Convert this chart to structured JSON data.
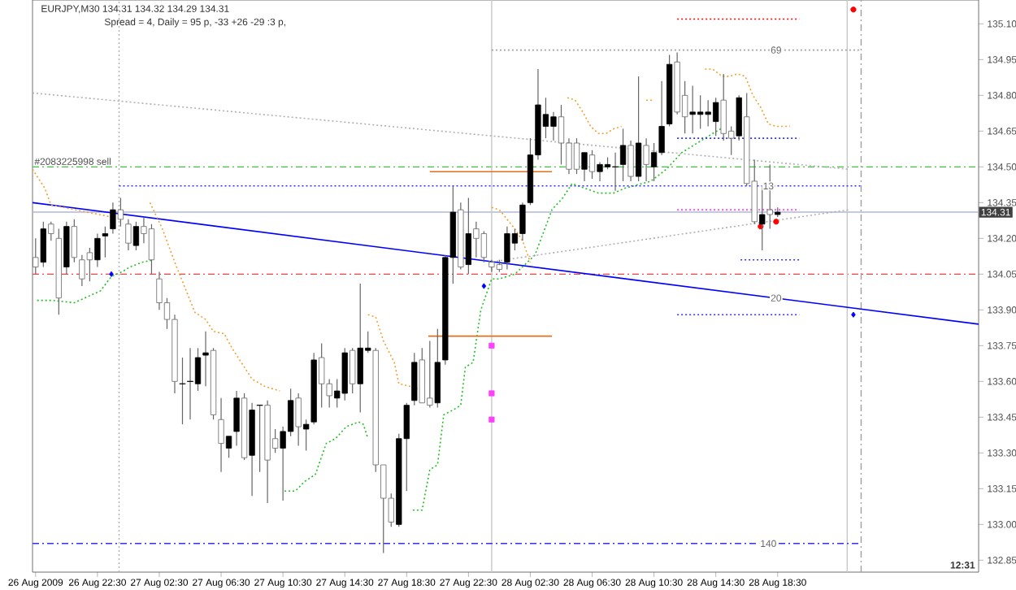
{
  "chart_data": {
    "type": "candlestick",
    "title": "EURJPY,M30  134.31 134.32 134.29 134.31",
    "subtitle": "Spread = 4,   Daily  = 95 p,   -33 +26 -29 :3 p,",
    "x": [
      "2009-08-26T18:30",
      "2009-08-26T19:00",
      "2009-08-26T19:30",
      "2009-08-26T20:00",
      "2009-08-26T20:30",
      "2009-08-26T21:00",
      "2009-08-26T21:30",
      "2009-08-26T22:00",
      "2009-08-26T22:30",
      "2009-08-26T23:00",
      "2009-08-26T23:30",
      "2009-08-27T00:00",
      "2009-08-27T00:30",
      "2009-08-27T01:00",
      "2009-08-27T01:30",
      "2009-08-27T02:00",
      "2009-08-27T02:30",
      "2009-08-27T03:00",
      "2009-08-27T03:30",
      "2009-08-27T04:00",
      "2009-08-27T04:30",
      "2009-08-27T05:00",
      "2009-08-27T05:30",
      "2009-08-27T06:00",
      "2009-08-27T06:30",
      "2009-08-27T07:00",
      "2009-08-27T07:30",
      "2009-08-27T08:00",
      "2009-08-27T08:30",
      "2009-08-27T09:00",
      "2009-08-27T09:30",
      "2009-08-27T10:00",
      "2009-08-27T10:30",
      "2009-08-27T11:00",
      "2009-08-27T11:30",
      "2009-08-27T12:00",
      "2009-08-27T12:30",
      "2009-08-27T13:00",
      "2009-08-27T13:30",
      "2009-08-27T14:00",
      "2009-08-27T14:30",
      "2009-08-27T15:00",
      "2009-08-27T15:30",
      "2009-08-27T16:00",
      "2009-08-27T16:30",
      "2009-08-27T17:00",
      "2009-08-27T17:30",
      "2009-08-27T18:00",
      "2009-08-27T18:30",
      "2009-08-27T19:00",
      "2009-08-27T19:30",
      "2009-08-27T20:00",
      "2009-08-27T20:30",
      "2009-08-27T21:00",
      "2009-08-27T21:30",
      "2009-08-27T22:00",
      "2009-08-27T22:30",
      "2009-08-27T23:00",
      "2009-08-27T23:30",
      "2009-08-28T00:00",
      "2009-08-28T00:30",
      "2009-08-28T01:00",
      "2009-08-28T01:30",
      "2009-08-28T02:00",
      "2009-08-28T02:30",
      "2009-08-28T03:00",
      "2009-08-28T03:30",
      "2009-08-28T04:00",
      "2009-08-28T04:30",
      "2009-08-28T05:00",
      "2009-08-28T05:30",
      "2009-08-28T06:00",
      "2009-08-28T06:30",
      "2009-08-28T07:00",
      "2009-08-28T07:30",
      "2009-08-28T08:00",
      "2009-08-28T08:30",
      "2009-08-28T09:00",
      "2009-08-28T09:30",
      "2009-08-28T10:00",
      "2009-08-28T10:30",
      "2009-08-28T11:00",
      "2009-08-28T11:30",
      "2009-08-28T12:00",
      "2009-08-28T12:30",
      "2009-08-28T13:00",
      "2009-08-28T13:30",
      "2009-08-28T14:00",
      "2009-08-28T14:30",
      "2009-08-28T15:00",
      "2009-08-28T15:30",
      "2009-08-28T16:00",
      "2009-08-28T16:30",
      "2009-08-28T17:00",
      "2009-08-28T17:30",
      "2009-08-28T18:00",
      "2009-08-28T18:30"
    ],
    "ohlc": [
      [
        134.12,
        134.2,
        134.05,
        134.08
      ],
      [
        134.1,
        134.27,
        134.08,
        134.24
      ],
      [
        134.26,
        134.27,
        134.19,
        134.22
      ],
      [
        134.2,
        134.24,
        133.88,
        133.95
      ],
      [
        134.08,
        134.27,
        134.05,
        134.25
      ],
      [
        134.25,
        134.28,
        134.1,
        134.12
      ],
      [
        134.11,
        134.13,
        134.0,
        134.03
      ],
      [
        134.14,
        134.16,
        134.02,
        134.11
      ],
      [
        134.11,
        134.22,
        134.08,
        134.2
      ],
      [
        134.21,
        134.25,
        134.12,
        134.22
      ],
      [
        134.24,
        134.35,
        134.22,
        134.32
      ],
      [
        134.32,
        134.37,
        134.25,
        134.28
      ],
      [
        134.26,
        134.28,
        134.15,
        134.18
      ],
      [
        134.17,
        134.27,
        134.15,
        134.25
      ],
      [
        134.25,
        134.29,
        134.18,
        134.22
      ],
      [
        134.24,
        134.26,
        134.05,
        134.11
      ],
      [
        134.03,
        134.06,
        133.9,
        133.93
      ],
      [
        133.93,
        133.95,
        133.82,
        133.86
      ],
      [
        133.86,
        133.88,
        133.55,
        133.6
      ],
      [
        133.59,
        133.7,
        133.42,
        133.59
      ],
      [
        133.6,
        133.74,
        133.44,
        133.6
      ],
      [
        133.59,
        133.74,
        133.56,
        133.7
      ],
      [
        133.71,
        133.81,
        133.58,
        133.72
      ],
      [
        133.73,
        133.74,
        133.44,
        133.46
      ],
      [
        133.44,
        133.53,
        133.22,
        133.34
      ],
      [
        133.32,
        133.37,
        133.28,
        133.37
      ],
      [
        133.39,
        133.56,
        133.33,
        133.53
      ],
      [
        133.53,
        133.55,
        133.27,
        133.28
      ],
      [
        133.29,
        133.51,
        133.12,
        133.48
      ],
      [
        133.5,
        133.5,
        133.22,
        133.5
      ],
      [
        133.5,
        133.52,
        133.09,
        133.27
      ],
      [
        133.36,
        133.4,
        133.3,
        133.32
      ],
      [
        133.32,
        133.41,
        133.1,
        133.39
      ],
      [
        133.39,
        133.57,
        133.37,
        133.52
      ],
      [
        133.53,
        133.55,
        133.33,
        133.41
      ],
      [
        133.4,
        133.44,
        133.31,
        133.42
      ],
      [
        133.43,
        133.72,
        133.42,
        133.69
      ],
      [
        133.7,
        133.76,
        133.49,
        133.59
      ],
      [
        133.59,
        133.61,
        133.49,
        133.54
      ],
      [
        133.53,
        133.61,
        133.49,
        133.56
      ],
      [
        133.55,
        133.74,
        133.52,
        133.72
      ],
      [
        133.73,
        133.74,
        133.55,
        133.59
      ],
      [
        133.59,
        134.01,
        133.47,
        133.74
      ],
      [
        133.73,
        133.81,
        133.72,
        133.74
      ],
      [
        133.73,
        133.74,
        133.22,
        133.25
      ],
      [
        133.25,
        133.25,
        132.88,
        133.11
      ],
      [
        133.11,
        133.13,
        132.99,
        133.01
      ],
      [
        133.0,
        133.38,
        132.99,
        133.36
      ],
      [
        133.36,
        133.51,
        133.14,
        133.5
      ],
      [
        133.52,
        133.72,
        133.5,
        133.68
      ],
      [
        133.69,
        133.74,
        133.51,
        133.51
      ],
      [
        133.53,
        133.77,
        133.49,
        133.5
      ],
      [
        133.51,
        133.82,
        133.49,
        133.68
      ],
      [
        133.69,
        134.13,
        133.67,
        134.12
      ],
      [
        134.12,
        134.42,
        134.01,
        134.31
      ],
      [
        134.32,
        134.35,
        134.07,
        134.08
      ],
      [
        134.09,
        134.37,
        134.05,
        134.22
      ],
      [
        134.24,
        134.27,
        134.12,
        134.2
      ],
      [
        134.22,
        134.23,
        134.1,
        134.12
      ],
      [
        134.1,
        134.11,
        134.06,
        134.08
      ],
      [
        134.09,
        134.11,
        134.06,
        134.07
      ],
      [
        134.1,
        134.25,
        134.07,
        134.22
      ],
      [
        134.18,
        134.24,
        134.15,
        134.22
      ],
      [
        134.22,
        134.35,
        134.19,
        134.34
      ],
      [
        134.35,
        134.62,
        134.34,
        134.55
      ],
      [
        134.55,
        134.91,
        134.53,
        134.76
      ],
      [
        134.67,
        134.79,
        134.62,
        134.72
      ],
      [
        134.67,
        134.73,
        134.61,
        134.71
      ],
      [
        134.71,
        134.76,
        134.51,
        134.6
      ],
      [
        134.6,
        134.62,
        134.47,
        134.49
      ],
      [
        134.6,
        134.62,
        134.47,
        134.49
      ],
      [
        134.49,
        134.56,
        134.44,
        134.56
      ],
      [
        134.55,
        134.57,
        134.45,
        134.48
      ],
      [
        134.48,
        134.52,
        134.44,
        134.51
      ],
      [
        134.5,
        134.54,
        134.49,
        134.51
      ],
      [
        134.5,
        134.56,
        134.4,
        134.5
      ],
      [
        134.51,
        134.66,
        134.44,
        134.59
      ],
      [
        134.59,
        134.61,
        134.44,
        134.46
      ],
      [
        134.46,
        134.88,
        134.44,
        134.6
      ],
      [
        134.59,
        134.62,
        134.44,
        134.51
      ],
      [
        134.5,
        134.6,
        134.44,
        134.56
      ],
      [
        134.56,
        134.86,
        134.55,
        134.67
      ],
      [
        134.68,
        134.97,
        134.67,
        134.93
      ],
      [
        134.94,
        134.98,
        134.72,
        134.73
      ],
      [
        134.8,
        134.86,
        134.64,
        134.71
      ],
      [
        134.72,
        134.84,
        134.64,
        134.73
      ],
      [
        134.72,
        134.8,
        134.66,
        134.73
      ],
      [
        134.72,
        134.78,
        134.67,
        134.73
      ],
      [
        134.69,
        134.79,
        134.63,
        134.77
      ],
      [
        134.78,
        134.89,
        134.61,
        134.64
      ],
      [
        134.65,
        134.67,
        134.55,
        134.62
      ],
      [
        134.63,
        134.8,
        134.61,
        134.79
      ],
      [
        134.71,
        134.81,
        134.42,
        134.43
      ],
      [
        134.44,
        134.53,
        134.26,
        134.27
      ],
      [
        134.26,
        134.42,
        134.15,
        134.3
      ],
      [
        134.32,
        134.51,
        134.24,
        134.3
      ],
      [
        134.3,
        134.33,
        134.29,
        134.31
      ]
    ],
    "xlim": [
      "2009-08-26T18:18",
      "2009-08-29T07:30"
    ],
    "ylim": [
      132.8,
      135.2
    ],
    "xticks": [
      {
        "value": "2009-08-26T18:30",
        "label": "26 Aug 2009"
      },
      {
        "value": "2009-08-26T22:30",
        "label": "26 Aug 22:30"
      },
      {
        "value": "2009-08-27T02:30",
        "label": "27 Aug 02:30"
      },
      {
        "value": "2009-08-27T06:30",
        "label": "27 Aug 06:30"
      },
      {
        "value": "2009-08-27T10:30",
        "label": "27 Aug 10:30"
      },
      {
        "value": "2009-08-27T14:30",
        "label": "27 Aug 14:30"
      },
      {
        "value": "2009-08-27T18:30",
        "label": "27 Aug 18:30"
      },
      {
        "value": "2009-08-27T22:30",
        "label": "27 Aug 22:30"
      },
      {
        "value": "2009-08-28T02:30",
        "label": "28 Aug 02:30"
      },
      {
        "value": "2009-08-28T06:30",
        "label": "28 Aug 06:30"
      },
      {
        "value": "2009-08-28T10:30",
        "label": "28 Aug 10:30"
      },
      {
        "value": "2009-08-28T14:30",
        "label": "28 Aug 14:30"
      },
      {
        "value": "2009-08-28T18:30",
        "label": "28 Aug 18:30"
      }
    ],
    "yticks": [
      {
        "value": 135.1,
        "label": "135.10"
      },
      {
        "value": 134.95,
        "label": "134.95"
      },
      {
        "value": 134.8,
        "label": "134.80"
      },
      {
        "value": 134.65,
        "label": "134.65"
      },
      {
        "value": 134.5,
        "label": "134.50"
      },
      {
        "value": 134.35,
        "label": "134.35"
      },
      {
        "value": 134.2,
        "label": "134.20"
      },
      {
        "value": 134.05,
        "label": "134.05"
      },
      {
        "value": 133.9,
        "label": "133.90"
      },
      {
        "value": 133.75,
        "label": "133.75"
      },
      {
        "value": 133.6,
        "label": "133.60"
      },
      {
        "value": 133.45,
        "label": "133.45"
      },
      {
        "value": 133.3,
        "label": "133.30"
      },
      {
        "value": 133.15,
        "label": "133.15"
      },
      {
        "value": 133.0,
        "label": "133.00"
      },
      {
        "value": 132.85,
        "label": "132.85"
      }
    ],
    "series": [
      {
        "type": "line",
        "color": "#0000ff",
        "line_style": "solid",
        "x": [
          "2009-08-26T18:18",
          "2009-08-29T07:30"
        ],
        "values": [
          134.35,
          133.84
        ]
      },
      {
        "type": "line",
        "color": "#f0a030",
        "line_style": "dotted",
        "x": [
          "2009-08-26T18:18",
          "2009-08-26T19:06",
          "2009-08-26T19:30",
          "2009-08-26T23:24",
          "2009-08-27T00:30",
          "2009-08-27T01:54",
          "2009-08-27T02:42",
          "2009-08-27T03:30",
          "2009-08-27T04:48",
          "2009-08-27T05:30",
          "2009-08-27T06:00",
          "2009-08-27T06:42",
          "2009-08-27T07:12",
          "2009-08-27T07:48",
          "2009-08-27T08:30",
          "2009-08-27T09:18",
          "2009-08-27T10:18",
          "2009-08-27T13:00",
          "2009-08-27T16:00",
          "2009-08-27T16:30",
          "2009-08-27T17:00",
          "2009-08-27T17:42",
          "2009-08-27T18:00",
          "2009-08-27T18:42",
          "2009-08-27T19:12",
          "2009-08-27T21:30",
          "2009-08-28T00:00",
          "2009-08-28T00:30",
          "2009-08-28T01:00",
          "2009-08-28T01:30",
          "2009-08-28T02:00",
          "2009-08-28T02:30",
          "2009-08-28T03:30",
          "2009-08-28T04:54",
          "2009-08-28T05:24",
          "2009-08-28T05:54",
          "2009-08-28T06:24",
          "2009-08-28T06:54",
          "2009-08-28T07:24",
          "2009-08-28T07:54",
          "2009-08-28T08:24",
          "2009-08-28T09:12",
          "2009-08-28T10:00",
          "2009-08-28T10:30",
          "2009-08-28T12:00",
          "2009-08-28T13:48",
          "2009-08-28T14:18",
          "2009-08-28T14:54",
          "2009-08-28T15:24",
          "2009-08-28T15:54",
          "2009-08-28T16:24",
          "2009-08-28T16:54",
          "2009-08-28T17:24",
          "2009-08-28T17:54",
          "2009-08-28T18:24",
          "2009-08-28T19:18"
        ],
        "values": [
          134.49,
          134.41,
          134.34,
          134.29,
          null,
          134.35,
          134.24,
          134.1,
          133.89,
          133.86,
          133.81,
          133.8,
          133.74,
          133.68,
          133.61,
          133.58,
          133.56,
          null,
          133.88,
          133.87,
          133.77,
          133.68,
          133.59,
          133.58,
          133.57,
          null,
          134.33,
          134.32,
          134.28,
          134.24,
          134.19,
          134.1,
          null,
          134.79,
          134.78,
          134.73,
          134.67,
          134.64,
          134.64,
          134.66,
          134.67,
          null,
          134.78,
          134.78,
          null,
          134.91,
          134.91,
          134.88,
          134.88,
          134.89,
          134.88,
          134.8,
          134.75,
          134.68,
          134.67,
          134.67
        ]
      },
      {
        "type": "line",
        "color": "#20c020",
        "line_style": "dotted",
        "x": [
          "2009-08-26T18:36",
          "2009-08-26T19:36",
          "2009-08-26T21:00",
          "2009-08-26T22:42",
          "2009-08-26T23:24",
          "2009-08-27T00:06",
          "2009-08-27T00:36",
          "2009-08-27T01:24",
          "2009-08-27T02:06",
          "2009-08-27T06:00",
          "2009-08-27T10:36",
          "2009-08-27T11:18",
          "2009-08-27T11:54",
          "2009-08-27T12:36",
          "2009-08-27T13:18",
          "2009-08-27T13:54",
          "2009-08-27T14:36",
          "2009-08-27T15:24",
          "2009-08-27T15:42",
          "2009-08-27T16:00",
          "2009-08-27T17:30",
          "2009-08-27T18:54",
          "2009-08-27T19:30",
          "2009-08-27T20:00",
          "2009-08-27T20:30",
          "2009-08-27T20:54",
          "2009-08-27T21:30",
          "2009-08-27T22:00",
          "2009-08-27T22:18",
          "2009-08-27T22:48",
          "2009-08-27T23:18",
          "2009-08-28T00:00",
          "2009-08-28T00:30",
          "2009-08-28T01:30",
          "2009-08-28T02:48",
          "2009-08-28T03:54",
          "2009-08-28T04:36",
          "2009-08-28T05:12",
          "2009-08-28T06:54",
          "2009-08-28T07:54",
          "2009-08-28T08:36",
          "2009-08-28T10:18",
          "2009-08-28T11:18",
          "2009-08-28T12:18",
          "2009-08-28T13:18",
          "2009-08-28T14:18",
          "2009-08-28T15:06"
        ],
        "values": [
          133.94,
          133.94,
          133.93,
          133.98,
          134.04,
          134.06,
          134.08,
          134.1,
          134.11,
          null,
          133.14,
          133.14,
          133.18,
          133.21,
          133.34,
          133.36,
          133.41,
          133.43,
          133.42,
          133.36,
          null,
          133.06,
          133.06,
          133.23,
          133.25,
          133.46,
          133.48,
          133.5,
          133.66,
          133.68,
          133.9,
          134.03,
          134.03,
          134.05,
          134.13,
          134.32,
          134.37,
          134.43,
          134.39,
          134.39,
          134.41,
          134.44,
          134.49,
          134.56,
          134.6,
          134.64,
          134.67
        ]
      },
      {
        "type": "line",
        "color": "#3030ff",
        "line_style": "dotted",
        "x": [
          "2009-08-26T23:54",
          "2009-08-28T23:54"
        ],
        "values": [
          134.42,
          134.42
        ]
      },
      {
        "type": "line",
        "color": "#a0a0a0",
        "line_style": "dotted",
        "x": [
          "2009-08-28T00:00",
          "2009-08-28T23:54"
        ],
        "values": [
          134.99,
          134.99
        ]
      },
      {
        "type": "line",
        "color": "#ff0000",
        "line_style": "dotted",
        "x": [
          "2009-08-28T12:00",
          "2009-08-28T19:54"
        ],
        "values": [
          135.12,
          135.12
        ]
      },
      {
        "type": "line",
        "color": "#3030ff",
        "line_style": "dotted",
        "x": [
          "2009-08-28T12:00",
          "2009-08-28T19:54"
        ],
        "values": [
          134.62,
          134.62
        ]
      },
      {
        "type": "line",
        "color": "#ff40ff",
        "line_style": "dotted",
        "x": [
          "2009-08-28T12:00",
          "2009-08-28T19:54"
        ],
        "values": [
          134.32,
          134.32
        ]
      },
      {
        "type": "line",
        "color": "#3030ff",
        "line_style": "dotted",
        "x": [
          "2009-08-28T16:06",
          "2009-08-28T19:54"
        ],
        "values": [
          134.11,
          134.11
        ]
      },
      {
        "type": "line",
        "color": "#3030ff",
        "line_style": "dotted",
        "x": [
          "2009-08-28T12:00",
          "2009-08-28T19:54"
        ],
        "values": [
          133.88,
          133.88
        ]
      },
      {
        "type": "line",
        "color": "#3030ff",
        "line_style": "dashed",
        "x": [
          "2009-08-26T18:18",
          "2009-08-28T23:54"
        ],
        "values": [
          132.92,
          132.92
        ]
      },
      {
        "type": "line",
        "color": "#b0b0b0",
        "line_style": "dotted",
        "x": [
          "2009-08-26T18:18",
          "2009-08-28T23:06"
        ],
        "values": [
          134.81,
          134.49
        ]
      },
      {
        "type": "line",
        "color": "#b0b0b0",
        "line_style": "dotted",
        "x": [
          "2009-08-27T23:48",
          "2009-08-28T23:06"
        ],
        "values": [
          134.1,
          134.32
        ]
      },
      {
        "type": "line",
        "color": "#e07020",
        "line_style": "solid",
        "x": [
          "2009-08-27T20:00",
          "2009-08-28T03:54"
        ],
        "values": [
          134.48,
          134.48
        ]
      },
      {
        "type": "line",
        "color": "#e07020",
        "line_style": "solid",
        "x": [
          "2009-08-27T19:54",
          "2009-08-28T03:54"
        ],
        "values": [
          133.79,
          133.79
        ]
      },
      {
        "type": "scatter",
        "color": "#0000ff",
        "marker": "diamond",
        "x": [
          "2009-08-26T23:24",
          "2009-08-27T23:30",
          "2009-08-28T23:24"
        ],
        "values": [
          134.05,
          134.0,
          133.88
        ]
      },
      {
        "type": "scatter",
        "color": "#ff0000",
        "marker": "circle",
        "x": [
          "2009-08-28T23:24",
          "2009-08-28T17:24",
          "2009-08-28T18:24"
        ],
        "values": [
          135.16,
          134.25,
          134.27
        ]
      },
      {
        "type": "scatter",
        "color": "#ff40ff",
        "marker": "square",
        "x": [
          "2009-08-28T00:00",
          "2009-08-28T00:00",
          "2009-08-28T00:00"
        ],
        "values": [
          133.75,
          133.55,
          133.44
        ]
      }
    ],
    "ref_lines": [
      {
        "axis": "y",
        "value": 134.05,
        "color": "#ff4040",
        "line_style": "dashed"
      },
      {
        "axis": "y",
        "value": 134.5,
        "label": "#2083225998 sell",
        "color": "#40c040",
        "line_style": "dashed"
      },
      {
        "axis": "y",
        "value": 134.31,
        "label": "134.31",
        "color": "#b0b8d0",
        "line_style": "solid"
      },
      {
        "axis": "x",
        "value": "2009-08-26T23:54",
        "color": "#b0b0b0",
        "line_style": "dotted"
      },
      {
        "axis": "x",
        "value": "2009-08-28T00:00",
        "color": "#c8c8c8",
        "line_style": "solid"
      },
      {
        "axis": "x",
        "value": "2009-08-28T23:00",
        "color": "#c8c8c8",
        "line_style": "solid"
      },
      {
        "axis": "x",
        "value": "2009-08-28T23:54",
        "color": "#a0a0a0",
        "line_style": "dashed"
      }
    ],
    "annotations": [
      "12:31",
      {
        "text": "69",
        "x": "2009-08-28T18:24",
        "y": 134.99
      },
      {
        "text": "13",
        "x": "2009-08-28T17:54",
        "y": 134.42
      },
      {
        "text": "20",
        "x": "2009-08-28T18:24",
        "y": 133.95
      },
      {
        "text": "140",
        "x": "2009-08-28T17:54",
        "y": 132.92
      }
    ]
  }
}
